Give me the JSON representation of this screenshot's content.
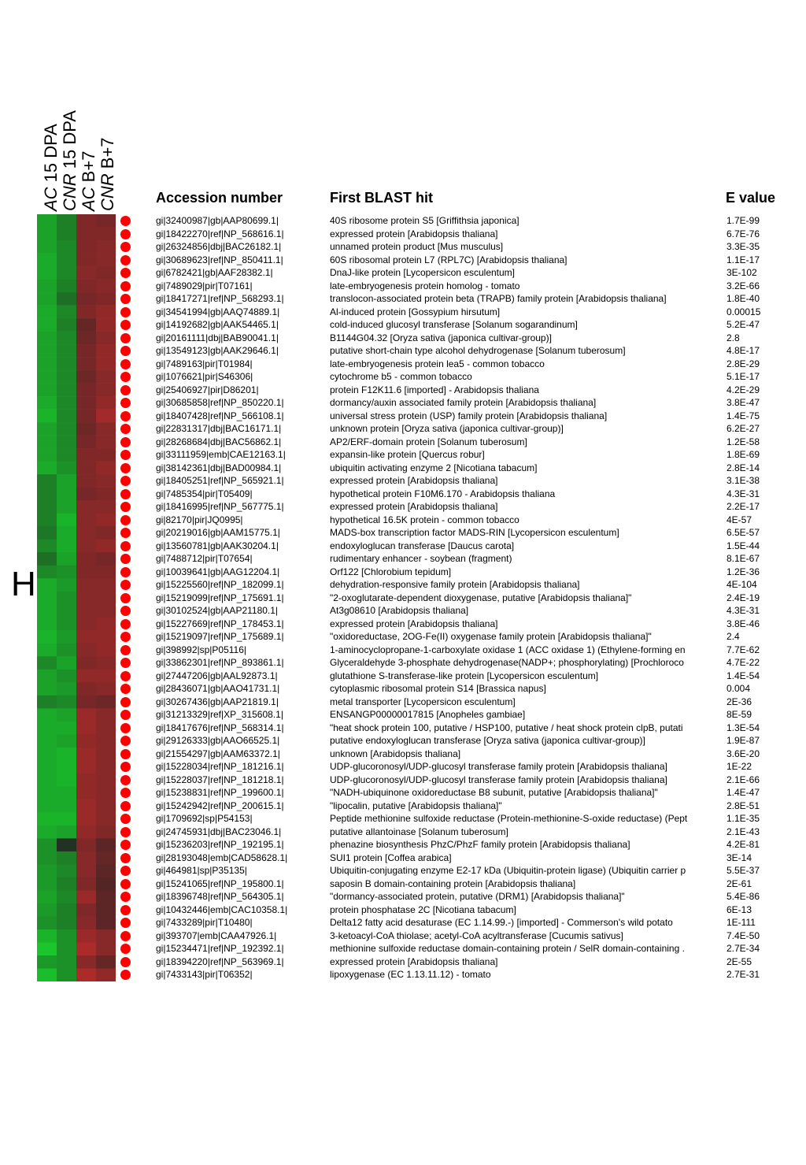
{
  "panel_letter": "H",
  "colors": {
    "dot": "#ff0000",
    "low": "#22cc33",
    "neutral": "#222222",
    "high": "#cc2222"
  },
  "chart_data": {
    "type": "heatmap",
    "conditions": [
      {
        "strain": "AC",
        "stage": "15 DPA"
      },
      {
        "strain": "CNR",
        "stage": "15 DPA"
      },
      {
        "strain": "AC",
        "stage": "B+7"
      },
      {
        "strain": "CNR",
        "stage": "B+7"
      }
    ],
    "columns": [
      "Accession number",
      "First BLAST hit",
      "E value"
    ],
    "color_scale": "green (low) - black - red (high), values estimated in range -1..1",
    "rows": [
      {
        "accession": "gi|32400987|gb|AAP80699.1|",
        "hit": "40S ribosome protein S5 [Griffithsia japonica]",
        "e": "1.7E-99",
        "v": [
          -0.7,
          -0.5,
          0.5,
          0.45
        ]
      },
      {
        "accession": "gi|18422270|ref|NP_568616.1|",
        "hit": "expressed protein [Arabidopsis thaliana]",
        "e": "6.7E-76",
        "v": [
          -0.7,
          -0.5,
          0.5,
          0.5
        ]
      },
      {
        "accession": "gi|26324856|dbj|BAC26182.1|",
        "hit": "unnamed protein product [Mus musculus]",
        "e": "3.3E-35",
        "v": [
          -0.7,
          -0.55,
          0.5,
          0.55
        ]
      },
      {
        "accession": "gi|30689623|ref|NP_850411.1|",
        "hit": "60S ribosomal protein L7 (RPL7C) [Arabidopsis thaliana]",
        "e": "1.1E-17",
        "v": [
          -0.75,
          -0.55,
          0.5,
          0.55
        ]
      },
      {
        "accession": "gi|6782421|gb|AAF28382.1|",
        "hit": "DnaJ-like protein [Lycopersicon esculentum]",
        "e": "3E-102",
        "v": [
          -0.75,
          -0.55,
          0.55,
          0.5
        ]
      },
      {
        "accession": "gi|7489029|pir|T07161|",
        "hit": "late-embryogenesis protein homolog - tomato",
        "e": "3.2E-66",
        "v": [
          -0.7,
          -0.5,
          0.5,
          0.55
        ]
      },
      {
        "accession": "gi|18417271|ref|NP_568293.1|",
        "hit": "translocon-associated protein beta (TRAPB) family protein [Arabidopsis thaliana]",
        "e": "1.8E-40",
        "v": [
          -0.7,
          -0.4,
          0.45,
          0.5
        ]
      },
      {
        "accession": "gi|34541994|gb|AAQ74889.1|",
        "hit": "Al-induced protein [Gossypium hirsutum]",
        "e": "0.00015",
        "v": [
          -0.75,
          -0.55,
          0.5,
          0.6
        ]
      },
      {
        "accession": "gi|14192682|gb|AAK54465.1|",
        "hit": "cold-induced glucosyl transferase [Solanum sogarandinum]",
        "e": "5.2E-47",
        "v": [
          -0.75,
          -0.5,
          0.35,
          0.6
        ]
      },
      {
        "accession": "gi|20161111|dbj|BAB90041.1|",
        "hit": "B1144G04.32 [Oryza sativa (japonica cultivar-group)]",
        "e": "2.8",
        "v": [
          -0.7,
          -0.55,
          0.4,
          0.55
        ]
      },
      {
        "accession": "gi|13549123|gb|AAK29646.1|",
        "hit": "putative short-chain type alcohol dehydrogenase [Solanum tuberosum]",
        "e": "4.8E-17",
        "v": [
          -0.7,
          -0.55,
          0.45,
          0.6
        ]
      },
      {
        "accession": "gi|7489163|pir|T01984|",
        "hit": "late-embryogenesis protein lea5 - common tobacco",
        "e": "2.8E-29",
        "v": [
          -0.7,
          -0.55,
          0.45,
          0.6
        ]
      },
      {
        "accession": "gi|1076621|pir|S46306|",
        "hit": "cytochrome b5 - common tobacco",
        "e": "5.1E-17",
        "v": [
          -0.7,
          -0.55,
          0.4,
          0.55
        ]
      },
      {
        "accession": "gi|25406927|pir|D86201|",
        "hit": "protein F12K11.6 [imported] - Arabidopsis thaliana",
        "e": "4.2E-29",
        "v": [
          -0.7,
          -0.55,
          0.45,
          0.55
        ]
      },
      {
        "accession": "gi|30685858|ref|NP_850220.1|",
        "hit": "dormancy/auxin associated family protein [Arabidopsis thaliana]",
        "e": "3.8E-47",
        "v": [
          -0.75,
          -0.55,
          0.45,
          0.6
        ]
      },
      {
        "accession": "gi|18407428|ref|NP_566108.1|",
        "hit": "universal stress protein (USP) family protein [Arabidopsis thaliana]",
        "e": "1.4E-75",
        "v": [
          -0.8,
          -0.55,
          0.45,
          0.7
        ]
      },
      {
        "accession": "gi|22831317|dbj|BAC16171.1|",
        "hit": "unknown protein [Oryza sativa (japonica cultivar-group)]",
        "e": "6.2E-27",
        "v": [
          -0.7,
          -0.55,
          0.4,
          0.55
        ]
      },
      {
        "accession": "gi|28268684|dbj|BAC56862.1|",
        "hit": "AP2/ERF-domain protein [Solanum tuberosum]",
        "e": "1.2E-58",
        "v": [
          -0.7,
          -0.55,
          0.45,
          0.55
        ]
      },
      {
        "accession": "gi|33111959|emb|CAE12163.1|",
        "hit": "expansin-like protein [Quercus robur]",
        "e": "1.8E-69",
        "v": [
          -0.7,
          -0.55,
          0.5,
          0.5
        ]
      },
      {
        "accession": "gi|38142361|dbj|BAD00984.1|",
        "hit": "ubiquitin activating enzyme 2 [Nicotiana tabacum]",
        "e": "2.8E-14",
        "v": [
          -0.75,
          -0.6,
          0.5,
          0.6
        ]
      },
      {
        "accession": "gi|18405251|ref|NP_565921.1|",
        "hit": "expressed protein [Arabidopsis thaliana]",
        "e": "3.1E-38",
        "v": [
          -0.5,
          -0.7,
          0.5,
          0.55
        ]
      },
      {
        "accession": "gi|7485354|pir|T05409|",
        "hit": "hypothetical protein F10M6.170 - Arabidopsis thaliana",
        "e": "4.3E-31",
        "v": [
          -0.5,
          -0.7,
          0.45,
          0.5
        ]
      },
      {
        "accession": "gi|18416995|ref|NP_567775.1|",
        "hit": "expressed protein [Arabidopsis thaliana]",
        "e": "2.2E-17",
        "v": [
          -0.5,
          -0.7,
          0.55,
          0.55
        ]
      },
      {
        "accession": "gi|82170|pir|JQ0995|",
        "hit": "hypothetical 16.5K protein - common tobacco",
        "e": "4E-57",
        "v": [
          -0.5,
          -0.8,
          0.55,
          0.6
        ]
      },
      {
        "accession": "gi|20219016|gb|AAM15775.1|",
        "hit": "MADS-box transcription factor MADS-RIN [Lycopersicon esculentum]",
        "e": "6.5E-57",
        "v": [
          -0.45,
          -0.75,
          0.55,
          0.5
        ]
      },
      {
        "accession": "gi|13560781|gb|AAK30204.1|",
        "hit": "endoxyloglucan transferase [Daucus carota]",
        "e": "1.5E-44",
        "v": [
          -0.55,
          -0.75,
          0.55,
          0.6
        ]
      },
      {
        "accession": "gi|7488712|pir|T07654|",
        "hit": "rudimentary enhancer - soybean (fragment)",
        "e": "8.1E-67",
        "v": [
          -0.4,
          -0.7,
          0.5,
          0.45
        ]
      },
      {
        "accession": "gi|10039641|gb|AAG12204.1|",
        "hit": "Orf122 [Chlorobium tepidum]",
        "e": "1.2E-36",
        "v": [
          -0.55,
          -0.6,
          0.5,
          0.5
        ]
      },
      {
        "accession": "gi|15225560|ref|NP_182099.1|",
        "hit": "dehydration-responsive family protein [Arabidopsis thaliana]",
        "e": "4E-104",
        "v": [
          -0.75,
          -0.65,
          0.55,
          0.55
        ]
      },
      {
        "accession": "gi|15219099|ref|NP_175691.1|",
        "hit": "\"2-oxoglutarate-dependent dioxygenase, putative [Arabidopsis thaliana]\"",
        "e": "2.4E-19",
        "v": [
          -0.75,
          -0.6,
          0.55,
          0.55
        ]
      },
      {
        "accession": "gi|30102524|gb|AAP21180.1|",
        "hit": "At3g08610 [Arabidopsis thaliana]",
        "e": "4.3E-31",
        "v": [
          -0.75,
          -0.6,
          0.55,
          0.55
        ]
      },
      {
        "accession": "gi|15227669|ref|NP_178453.1|",
        "hit": "expressed protein [Arabidopsis thaliana]",
        "e": "3.8E-46",
        "v": [
          -0.75,
          -0.6,
          0.55,
          0.6
        ]
      },
      {
        "accession": "gi|15219097|ref|NP_175689.1|",
        "hit": "\"oxidoreductase, 2OG-Fe(II) oxygenase family protein [Arabidopsis thaliana]\"",
        "e": "2.4",
        "v": [
          -0.8,
          -0.65,
          0.6,
          0.6
        ]
      },
      {
        "accession": "gi|398992|sp|P05116|",
        "hit": "1-aminocyclopropane-1-carboxylate oxidase 1 (ACC oxidase 1) (Ethylene-forming en",
        "e": "7.7E-62",
        "v": [
          -0.75,
          -0.6,
          0.55,
          0.6
        ]
      },
      {
        "accession": "gi|33862301|ref|NP_893861.1|",
        "hit": "Glyceraldehyde 3-phosphate dehydrogenase(NADP+; phosphorylating) [Prochloroco",
        "e": "4.7E-22",
        "v": [
          -0.55,
          -0.7,
          0.5,
          0.55
        ]
      },
      {
        "accession": "gi|27447206|gb|AAL92873.1|",
        "hit": "glutathione S-transferase-like protein [Lycopersicon esculentum]",
        "e": "1.4E-54",
        "v": [
          -0.7,
          -0.6,
          0.6,
          0.6
        ]
      },
      {
        "accession": "gi|28436071|gb|AAO41731.1|",
        "hit": "cytoplasmic ribosomal protein S14 [Brassica napus]",
        "e": "0.004",
        "v": [
          -0.7,
          -0.65,
          0.5,
          0.55
        ]
      },
      {
        "accession": "gi|30267436|gb|AAP21819.1|",
        "hit": "metal transporter [Lycopersicon esculentum]",
        "e": "2E-36",
        "v": [
          -0.5,
          -0.55,
          0.45,
          0.4
        ]
      },
      {
        "accession": "gi|31213329|ref|XP_315608.1|",
        "hit": "ENSANGP00000017815 [Anopheles gambiae]",
        "e": "8E-59",
        "v": [
          -0.75,
          -0.7,
          0.65,
          0.55
        ]
      },
      {
        "accession": "gi|18417676|ref|NP_568314.1|",
        "hit": "\"heat shock protein 100, putative / HSP100, putative / heat shock protein clpB, putati",
        "e": "1.3E-54",
        "v": [
          -0.75,
          -0.75,
          0.65,
          0.55
        ]
      },
      {
        "accession": "gi|29126333|gb|AAO66525.1|",
        "hit": "putative endoxyloglucan transferase [Oryza sativa (japonica cultivar-group)]",
        "e": "1.9E-87",
        "v": [
          -0.75,
          -0.7,
          0.6,
          0.55
        ]
      },
      {
        "accession": "gi|21554297|gb|AAM63372.1|",
        "hit": "unknown [Arabidopsis thaliana]",
        "e": "3.6E-20",
        "v": [
          -0.75,
          -0.8,
          0.65,
          0.55
        ]
      },
      {
        "accession": "gi|15228034|ref|NP_181216.1|",
        "hit": "UDP-glucoronosyl/UDP-glucosyl transferase family protein [Arabidopsis thaliana]",
        "e": "1E-22",
        "v": [
          -0.75,
          -0.8,
          0.65,
          0.55
        ]
      },
      {
        "accession": "gi|15228037|ref|NP_181218.1|",
        "hit": "UDP-glucoronosyl/UDP-glucosyl transferase family protein [Arabidopsis thaliana]",
        "e": "2.1E-66",
        "v": [
          -0.75,
          -0.8,
          0.6,
          0.55
        ]
      },
      {
        "accession": "gi|15238831|ref|NP_199600.1|",
        "hit": "\"NADH-ubiquinone oxidoreductase B8 subunit, putative [Arabidopsis thaliana]\"",
        "e": "1.4E-47",
        "v": [
          -0.75,
          -0.75,
          0.6,
          0.55
        ]
      },
      {
        "accession": "gi|15242942|ref|NP_200615.1|",
        "hit": "\"lipocalin, putative [Arabidopsis thaliana]\"",
        "e": "2.8E-51",
        "v": [
          -0.75,
          -0.75,
          0.65,
          0.55
        ]
      },
      {
        "accession": "gi|1709692|sp|P54153|",
        "hit": "Peptide methionine sulfoxide reductase (Protein-methionine-S-oxide reductase) (Pept",
        "e": "1.1E-35",
        "v": [
          -0.8,
          -0.8,
          0.65,
          0.55
        ]
      },
      {
        "accession": "gi|24745931|dbj|BAC23046.1|",
        "hit": "putative allantoinase [Solanum tuberosum]",
        "e": "2.1E-43",
        "v": [
          -0.75,
          -0.7,
          0.6,
          0.5
        ]
      },
      {
        "accession": "gi|15236203|ref|NP_192195.1|",
        "hit": "phenazine biosynthesis PhzC/PhzF family protein [Arabidopsis thaliana]",
        "e": "4.2E-81",
        "v": [
          -0.6,
          -0.05,
          0.5,
          0.3
        ]
      },
      {
        "accession": "gi|28193048|emb|CAD58628.1|",
        "hit": "SUI1 protein [Coffea arabica]",
        "e": "3E-14",
        "v": [
          -0.6,
          -0.5,
          0.55,
          0.35
        ]
      },
      {
        "accession": "gi|464981|sp|P35135|",
        "hit": "Ubiquitin-conjugating enzyme E2-17 kDa (Ubiquitin-protein ligase) (Ubiquitin carrier p",
        "e": "5.5E-37",
        "v": [
          -0.65,
          -0.55,
          0.55,
          0.3
        ]
      },
      {
        "accession": "gi|15241065|ref|NP_195800.1|",
        "hit": "saposin B domain-containing protein [Arabidopsis thaliana]",
        "e": "2E-61",
        "v": [
          -0.65,
          -0.5,
          0.5,
          0.25
        ]
      },
      {
        "accession": "gi|18396748|ref|NP_564305.1|",
        "hit": "\"dormancy-associated protein, putative (DRM1) [Arabidopsis thaliana]\"",
        "e": "5.4E-86",
        "v": [
          -0.7,
          -0.55,
          0.65,
          0.3
        ]
      },
      {
        "accession": "gi|10432446|emb|CAC10358.1|",
        "hit": "protein phosphatase 2C [Nicotiana tabacum]",
        "e": "6E-13",
        "v": [
          -0.65,
          -0.5,
          0.5,
          0.3
        ]
      },
      {
        "accession": "gi|7433289|pir|T10480|",
        "hit": "Delta12 fatty acid desaturase (EC 1.14.99.-) [imported] - Commerson's wild potato",
        "e": "1E-111",
        "v": [
          -0.6,
          -0.5,
          0.55,
          0.3
        ]
      },
      {
        "accession": "gi|393707|emb|CAA47926.1|",
        "hit": "3-ketoacyl-CoA thiolase; acetyl-CoA acyltransferase [Cucumis sativus]",
        "e": "7.4E-50",
        "v": [
          -0.8,
          -0.6,
          0.65,
          0.55
        ]
      },
      {
        "accession": "gi|15234471|ref|NP_192392.1|",
        "hit": "methionine sulfoxide reductase domain-containing protein / SelR domain-containing .",
        "e": "2.7E-34",
        "v": [
          -0.9,
          -0.6,
          0.75,
          0.55
        ]
      },
      {
        "accession": "gi|18394220|ref|NP_563969.1|",
        "hit": "expressed protein [Arabidopsis thaliana]",
        "e": "2E-55",
        "v": [
          -0.65,
          -0.6,
          0.55,
          0.35
        ]
      },
      {
        "accession": "gi|7433143|pir|T06352|",
        "hit": "lipoxygenase (EC 1.13.11.12) - tomato",
        "e": "2.7E-31",
        "v": [
          -0.85,
          -0.6,
          0.75,
          0.6
        ]
      }
    ]
  }
}
